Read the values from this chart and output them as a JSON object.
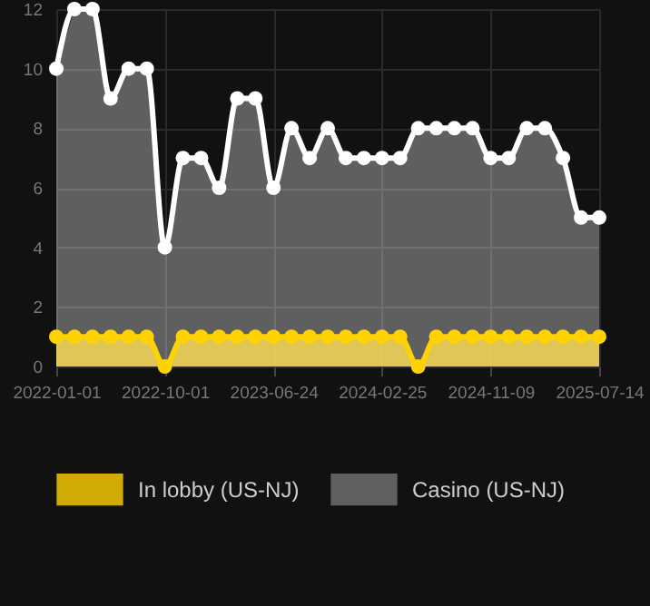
{
  "chart_data": {
    "type": "area",
    "categories": [
      "2022-01-01",
      null,
      null,
      null,
      null,
      null,
      "2022-10-01",
      null,
      null,
      null,
      null,
      null,
      "2023-06-24",
      null,
      null,
      null,
      null,
      null,
      "2024-02-25",
      null,
      null,
      null,
      null,
      null,
      "2024-11-09",
      null,
      null,
      null,
      null,
      null,
      "2025-07-14"
    ],
    "series": [
      {
        "name": "In lobby (US-NJ)",
        "color": "#ffd200",
        "values": [
          1,
          1,
          1,
          1,
          1,
          1,
          0,
          1,
          1,
          1,
          1,
          1,
          1,
          1,
          1,
          1,
          1,
          1,
          1,
          1,
          0,
          1,
          1,
          1,
          1,
          1,
          1,
          1,
          1,
          1,
          1
        ]
      },
      {
        "name": "Casino (US-NJ)",
        "color": "#ffffff",
        "values": [
          10,
          12,
          12,
          9,
          10,
          10,
          4,
          7,
          7,
          6,
          9,
          9,
          6,
          8,
          7,
          8,
          7,
          7,
          7,
          7,
          8,
          8,
          8,
          8,
          7,
          7,
          8,
          8,
          7,
          5,
          5
        ]
      }
    ],
    "ylim": [
      0,
      12
    ],
    "yticks": [
      0,
      2,
      4,
      6,
      8,
      10,
      12
    ],
    "grid": true,
    "legend": "bottom",
    "marker": "circle"
  }
}
